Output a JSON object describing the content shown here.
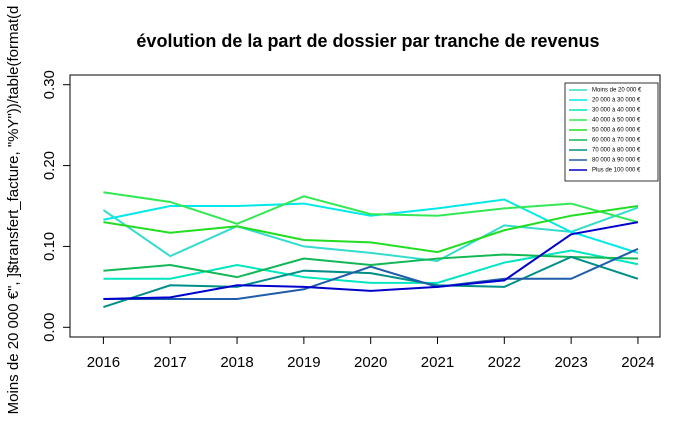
{
  "chart_data": {
    "type": "line",
    "title": "évolution de la part de dossier par tranche de revenus",
    "y_label": "Moins de 20 000 €\", ]$transfert_facture, \"%Y\"))/table(format(d",
    "x": [
      2016,
      2017,
      2018,
      2019,
      2020,
      2021,
      2022,
      2023,
      2024
    ],
    "xlim": [
      2015.5,
      2024.33
    ],
    "xticks": [
      2016,
      2017,
      2018,
      2019,
      2020,
      2021,
      2022,
      2023,
      2024
    ],
    "ylim": [
      -0.012,
      0.312
    ],
    "yticks": [
      {
        "value": 0,
        "label": "0.00"
      },
      {
        "value": 0.1,
        "label": "0.10"
      },
      {
        "value": 0.2,
        "label": "0.20"
      },
      {
        "value": 0.3,
        "label": "0.30"
      }
    ],
    "legend": "top-right",
    "series": [
      {
        "name": "Moins de 20 000 €",
        "color": "#33dccc",
        "values": [
          0.145,
          0.088,
          0.125,
          0.1,
          0.092,
          0.082,
          0.126,
          0.118,
          0.148
        ]
      },
      {
        "name": "20 000 à 30 000 €",
        "color": "#00e8e8",
        "values": [
          0.133,
          0.15,
          0.15,
          0.153,
          0.138,
          0.147,
          0.158,
          0.118,
          0.092
        ]
      },
      {
        "name": "30 000 à 40 000 €",
        "color": "#00e6c0",
        "values": [
          0.06,
          0.06,
          0.077,
          0.062,
          0.055,
          0.055,
          0.08,
          0.095,
          0.078
        ]
      },
      {
        "name": "40 000 à 50 000 €",
        "color": "#33e855",
        "values": [
          0.167,
          0.155,
          0.128,
          0.162,
          0.14,
          0.138,
          0.147,
          0.153,
          0.13
        ]
      },
      {
        "name": "50 000 à 60 000 €",
        "color": "#22dd22",
        "values": [
          0.13,
          0.117,
          0.125,
          0.108,
          0.105,
          0.093,
          0.12,
          0.138,
          0.15
        ]
      },
      {
        "name": "60 000 à 70 000 €",
        "color": "#11b855",
        "values": [
          0.07,
          0.077,
          0.062,
          0.085,
          0.077,
          0.085,
          0.09,
          0.087,
          0.085
        ]
      },
      {
        "name": "70 000 à 80 000 €",
        "color": "#008f88",
        "values": [
          0.025,
          0.052,
          0.05,
          0.07,
          0.067,
          0.052,
          0.05,
          0.087,
          0.06
        ]
      },
      {
        "name": "80 000 à 90 000 €",
        "color": "#1f5caa",
        "values": [
          0.035,
          0.035,
          0.035,
          0.047,
          0.075,
          0.05,
          0.06,
          0.06,
          0.097
        ]
      },
      {
        "name": "Plus de 100 000 €",
        "color": "#0000cc",
        "values": [
          0.035,
          0.037,
          0.052,
          0.05,
          0.045,
          0.05,
          0.058,
          0.115,
          0.13
        ]
      }
    ]
  }
}
